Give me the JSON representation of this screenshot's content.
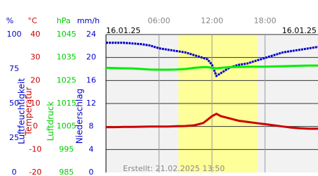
{
  "chart_data": {
    "type": "line",
    "date_left": "16.01.25",
    "date_right": "16.01.25",
    "created": "Erstellt: 21.02.2025 13:50",
    "xlim": [
      0,
      24
    ],
    "xticks": [
      {
        "value": 6,
        "label": "06:00"
      },
      {
        "value": 12,
        "label": "12:00"
      },
      {
        "value": 18,
        "label": "18:00"
      }
    ],
    "daylight": [
      8.2,
      17.2
    ],
    "axes": [
      {
        "unit": "%",
        "label": "Luftfeuchtigkeit",
        "color": "#0000cc",
        "lim": [
          0,
          100
        ],
        "ticks": [
          0,
          25,
          50,
          75,
          100
        ]
      },
      {
        "unit": "°C",
        "label": "Temperatur",
        "color": "#cc0000",
        "lim": [
          -20,
          40
        ],
        "ticks": [
          -20,
          -10,
          0,
          10,
          20,
          30,
          40
        ]
      },
      {
        "unit": "hPa",
        "label": "Luftdruck",
        "color": "#00cc00",
        "lim": [
          985,
          1045
        ],
        "ticks": [
          985,
          995,
          1005,
          1015,
          1025,
          1035,
          1045
        ]
      },
      {
        "unit": "mm/h",
        "label": "Niederschlag",
        "color": "#0000cc",
        "lim": [
          0,
          24
        ],
        "ticks": [
          0,
          4,
          8,
          12,
          16,
          20,
          24
        ]
      }
    ],
    "x": [
      0,
      1,
      2,
      3,
      4,
      5,
      6,
      7,
      8,
      9,
      10,
      11,
      11.5,
      12,
      12.5,
      13,
      14,
      15,
      16,
      17,
      18,
      19,
      20,
      21,
      22,
      23,
      24
    ],
    "series": [
      {
        "axis": 0,
        "color": "#0000cc",
        "values": [
          94,
          94,
          94,
          93.5,
          93,
          92,
          90,
          89,
          88,
          87,
          85,
          83,
          82,
          78,
          70,
          72,
          76,
          78,
          79,
          81,
          83,
          85,
          87,
          88,
          89,
          90,
          91
        ]
      },
      {
        "axis": 1,
        "color": "#cc0000",
        "values": [
          -0.3,
          -0.3,
          -0.2,
          -0.2,
          -0.1,
          0,
          0,
          0,
          0.1,
          0.2,
          0.5,
          1.5,
          3,
          4.5,
          5.5,
          4.5,
          3.5,
          2.5,
          2,
          1.5,
          1,
          0.5,
          0,
          -0.5,
          -0.8,
          -1,
          -1
        ]
      },
      {
        "axis": 2,
        "color": "#00ee00",
        "values": [
          1030.5,
          1030.4,
          1030.3,
          1030.2,
          1030,
          1029.8,
          1029.7,
          1029.7,
          1029.8,
          1030,
          1030.5,
          1030.8,
          1030.8,
          1030.5,
          1030.3,
          1030.5,
          1030.8,
          1030.9,
          1031,
          1031,
          1031,
          1031.1,
          1031.2,
          1031.3,
          1031.4,
          1031.5,
          1031.5
        ]
      }
    ]
  }
}
